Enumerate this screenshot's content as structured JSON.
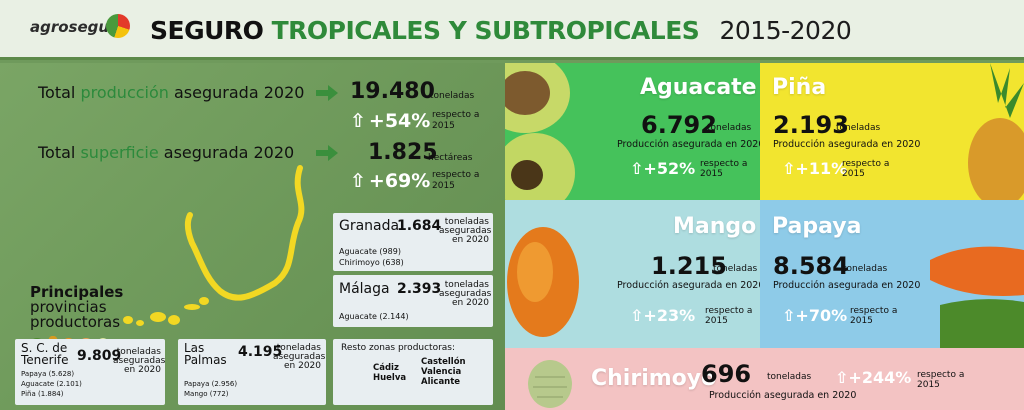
{
  "header": {
    "logo_text": "agroseguro",
    "title_part1": "SEGURO",
    "title_part2": "TROPICALES Y SUBTROPICALES",
    "title_years": "2015-2020"
  },
  "totals": {
    "produccion": {
      "label_pre": "Total",
      "label_green": "producción",
      "label_post": "asegurada 2020",
      "value": "19.480",
      "unit": "toneladas",
      "pct": "+54%",
      "respecto": "respecto a 2015"
    },
    "superficie": {
      "label_pre": "Total",
      "label_green": "superficie",
      "label_post": "asegurada 2020",
      "value": "1.825",
      "unit": "hectáreas",
      "pct": "+69%",
      "respecto": "respecto a 2015"
    }
  },
  "provincias": {
    "title_bold": "Principales",
    "title_rest1": "provincias",
    "title_rest2": "productoras",
    "granada": {
      "name": "Granada",
      "value": "1.684",
      "unit": "toneladas aseguradas en 2020",
      "items": [
        "Aguacate (989)",
        "Chirimoyo (638)"
      ]
    },
    "malaga": {
      "name": "Málaga",
      "value": "2.393",
      "unit": "toneladas aseguradas en 2020",
      "items": [
        "Aguacate (2.144)"
      ]
    },
    "tenerife": {
      "name1": "S. C. de",
      "name2": "Tenerife",
      "value": "9.809",
      "unit": "toneladas aseguradas en 2020",
      "items": [
        "Papaya (5.628)",
        "Aguacate (2.101)",
        "Piña (1.884)"
      ]
    },
    "laspalmas": {
      "name1": "Las",
      "name2": "Palmas",
      "value": "4.195",
      "unit": "toneladas aseguradas en 2020",
      "items": [
        "Papaya (2.956)",
        "Mango (772)"
      ]
    },
    "resto": {
      "title": "Resto zonas productoras:",
      "col1": [
        "Cádiz",
        "Huelva"
      ],
      "col2": [
        "Castellón",
        "Valencia",
        "Alicante"
      ]
    }
  },
  "tiles": {
    "aguacate": {
      "name": "Aguacate",
      "value": "6.792",
      "unit": "toneladas",
      "prod": "Producción asegurada en 2020",
      "pct": "+52%",
      "respecto": "respecto a 2015",
      "color": "#45c25b"
    },
    "pina": {
      "name": "Piña",
      "value": "2.193",
      "unit": "toneladas",
      "prod": "Producción asegurada en 2020",
      "pct": "+11%",
      "respecto": "respecto a 2015",
      "color": "#f2e52f"
    },
    "mango": {
      "name": "Mango",
      "value": "1.215",
      "unit": "toneladas",
      "prod": "Producción asegurada en 2020",
      "pct": "+23%",
      "respecto": "respecto a 2015",
      "color": "#aedde0"
    },
    "papaya": {
      "name": "Papaya",
      "value": "8.584",
      "unit": "toneladas",
      "prod": "Producción asegurada en 2020",
      "pct": "+70%",
      "respecto": "respecto a 2015",
      "color": "#8ecbe8"
    },
    "chirimoyo": {
      "name": "Chirimoyo",
      "value": "696",
      "unit": "toneladas",
      "prod": "Producción asegurada en 2020",
      "pct": "+244%",
      "respecto": "respecto a 2015",
      "color": "#f3c3c3"
    }
  }
}
